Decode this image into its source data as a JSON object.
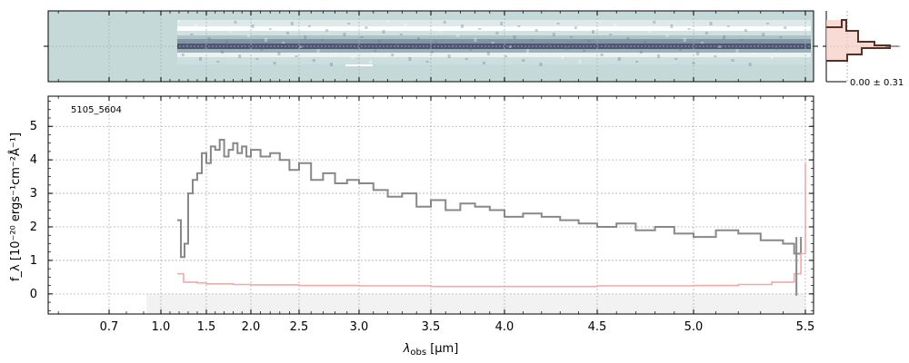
{
  "chart_data": {
    "type": "line",
    "object_id": "5105_5604",
    "xlabel": {
      "main": "λ",
      "sub": "obs",
      "unit": " [μm]"
    },
    "ylabel": "f_λ [10⁻²⁰ ergs⁻¹cm⁻²Å⁻¹]",
    "x_scale": "log-like (wavelength)",
    "xlim": [
      0.58,
      5.52
    ],
    "ylim": [
      -0.6,
      5.9
    ],
    "x_ticks": [
      0.7,
      1.0,
      1.5,
      2.0,
      2.5,
      3.0,
      3.5,
      4.0,
      4.5,
      5.0,
      5.5
    ],
    "x_tick_labels": [
      "0.7",
      "1.0",
      "1.5",
      "2.0",
      "2.5",
      "3.0",
      "3.5",
      "4.0",
      "4.5",
      "5.0",
      "5.5"
    ],
    "y_ticks": [
      0,
      1,
      2,
      3,
      4,
      5
    ],
    "y_tick_labels": [
      "0",
      "1",
      "2",
      "3",
      "4",
      "5"
    ],
    "grid": true,
    "series": [
      {
        "color": "#888888",
        "role": "flux",
        "x": [
          1.18,
          1.22,
          1.26,
          1.3,
          1.35,
          1.4,
          1.45,
          1.5,
          1.55,
          1.6,
          1.65,
          1.7,
          1.75,
          1.8,
          1.85,
          1.9,
          1.95,
          2.0,
          2.1,
          2.2,
          2.3,
          2.4,
          2.5,
          2.6,
          2.7,
          2.8,
          2.9,
          3.0,
          3.1,
          3.2,
          3.3,
          3.4,
          3.5,
          3.6,
          3.7,
          3.8,
          3.9,
          4.0,
          4.1,
          4.2,
          4.3,
          4.4,
          4.5,
          4.6,
          4.7,
          4.8,
          4.9,
          5.0,
          5.1,
          5.2,
          5.3,
          5.4,
          5.45,
          5.48
        ],
        "y": [
          2.2,
          1.1,
          1.5,
          3.0,
          3.4,
          3.6,
          4.2,
          3.9,
          4.4,
          4.3,
          4.6,
          4.1,
          4.3,
          4.5,
          4.2,
          4.4,
          4.1,
          4.3,
          4.1,
          4.2,
          4.0,
          3.7,
          3.9,
          3.4,
          3.6,
          3.3,
          3.4,
          3.3,
          3.1,
          2.9,
          3.0,
          2.6,
          2.8,
          2.5,
          2.7,
          2.6,
          2.5,
          2.3,
          2.4,
          2.3,
          2.2,
          2.1,
          2.0,
          2.1,
          1.9,
          2.0,
          1.8,
          1.7,
          1.9,
          1.8,
          1.6,
          1.5,
          1.2,
          1.7
        ]
      },
      {
        "color": "#f4a8a8",
        "role": "error",
        "x": [
          1.18,
          1.25,
          1.3,
          1.4,
          1.5,
          1.6,
          1.8,
          2.0,
          2.5,
          3.0,
          3.5,
          4.0,
          4.5,
          5.0,
          5.2,
          5.35,
          5.45,
          5.48,
          5.5
        ],
        "y": [
          0.6,
          0.35,
          0.35,
          0.33,
          0.3,
          0.3,
          0.28,
          0.27,
          0.25,
          0.24,
          0.22,
          0.22,
          0.24,
          0.25,
          0.28,
          0.35,
          0.6,
          1.2,
          3.9
        ]
      }
    ],
    "side_panel": {
      "label": "0.00 ± 0.31"
    },
    "colors": {
      "grid": "#b0b0b0",
      "flux": "#888888",
      "error": "#f4a8a8",
      "spectrum2d_bg": "#c5d9d9",
      "profile": "#5a2e24"
    }
  }
}
